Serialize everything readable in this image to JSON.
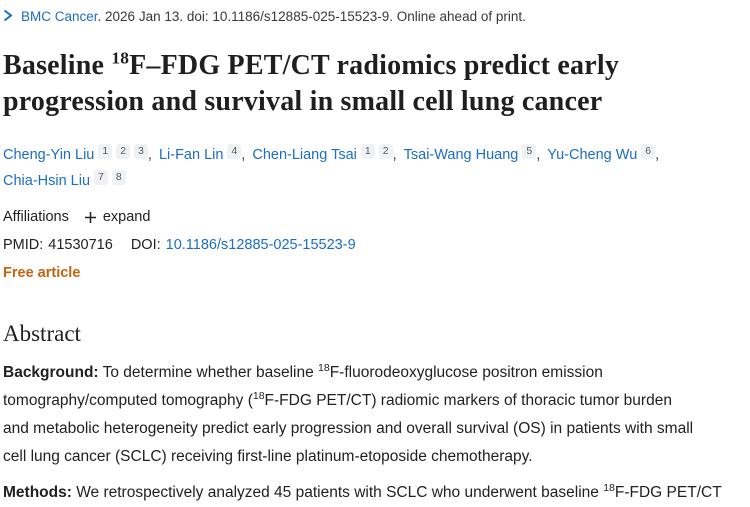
{
  "colors": {
    "link_blue": "#1b6ec2",
    "free_article_orange": "#c5630c",
    "affiliation_sup_bg": "#f0f1f3",
    "affiliation_sup_text": "#4e5d6c",
    "text_dark": "#212121"
  },
  "journal_bar": {
    "chevron_icon": "chevron-right-icon",
    "journal": "BMC Cancer",
    "citation": ". 2026 Jan 13. doi: 10.1186/s12885-025-15523-9. Online ahead of print."
  },
  "title_segments": [
    {
      "t": "text",
      "v": "Baseline "
    },
    {
      "t": "sup",
      "v": "18"
    },
    {
      "t": "text",
      "v": "F–FDG PET/CT radiomics predict early"
    },
    {
      "t": "br"
    },
    {
      "t": "text",
      "v": "progression and survival in small cell lung cancer"
    }
  ],
  "authors": {
    "items": [
      {
        "name": "Cheng-Yin Liu",
        "sups": [
          "1",
          "2",
          "3"
        ]
      },
      {
        "name": "Li-Fan Lin",
        "sups": [
          "4"
        ]
      },
      {
        "name": "Chen-Liang Tsai",
        "sups": [
          "1",
          "2"
        ]
      },
      {
        "name": "Tsai-Wang Huang",
        "sups": [
          "5"
        ]
      },
      {
        "name": "Yu-Cheng Wu",
        "sups": [
          "6"
        ],
        "break_after": true
      },
      {
        "name": "Chia-Hsin Liu",
        "sups": [
          "7",
          "8"
        ]
      }
    ],
    "separator": ","
  },
  "affiliations": {
    "label": "Affiliations",
    "expand_icon": "plus-icon",
    "expand_label": "expand"
  },
  "ids": {
    "pmid_label": "PMID:",
    "pmid": "41530716",
    "doi_label": "DOI:",
    "doi": "10.1186/s12885-025-15523-9"
  },
  "free_article": {
    "label": "Free article"
  },
  "abstract": {
    "heading": "Abstract",
    "paragraphs": [
      {
        "segments": [
          {
            "t": "b",
            "v": "Background:"
          },
          {
            "t": "text",
            "v": " To determine whether baseline "
          },
          {
            "t": "sup",
            "v": "18"
          },
          {
            "t": "text",
            "v": "F-fluorodeoxyglucose positron emission"
          },
          {
            "t": "br"
          },
          {
            "t": "text",
            "v": "tomography/computed tomography ("
          },
          {
            "t": "sup",
            "v": "18"
          },
          {
            "t": "text",
            "v": "F-FDG PET/CT) radiomic markers of thoracic tumor burden"
          },
          {
            "t": "br"
          },
          {
            "t": "text",
            "v": "and metabolic heterogeneity predict early progression and overall survival (OS) in patients with small"
          },
          {
            "t": "br"
          },
          {
            "t": "text",
            "v": "cell lung cancer (SCLC) receiving first-line platinum-etoposide chemotherapy."
          }
        ]
      },
      {
        "segments": [
          {
            "t": "b",
            "v": "Methods:"
          },
          {
            "t": "text",
            "v": " We retrospectively analyzed 45 patients with SCLC who underwent baseline "
          },
          {
            "t": "sup",
            "v": "18"
          },
          {
            "t": "text",
            "v": "F-FDG PET/CT"
          }
        ]
      }
    ]
  }
}
